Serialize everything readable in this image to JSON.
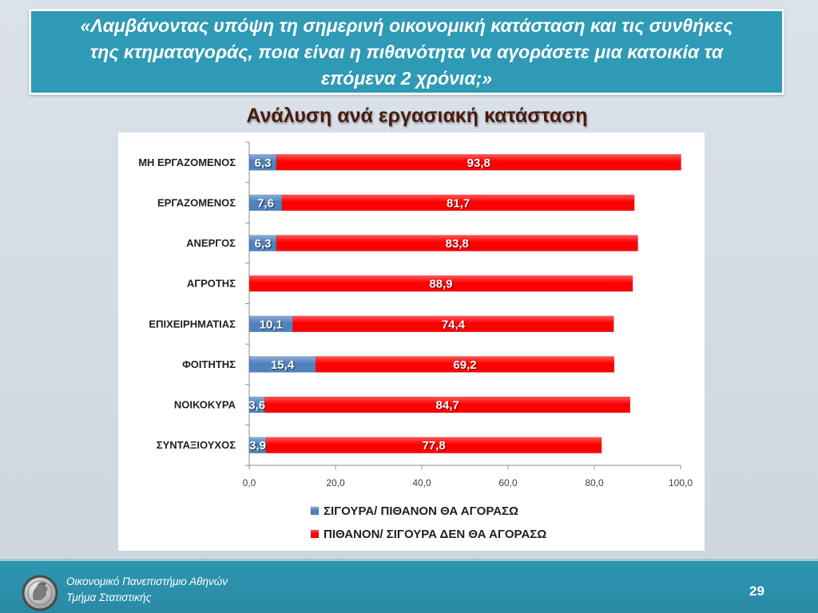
{
  "slide": {
    "question_lines": [
      "«Λαμβάνοντας υπόψη τη σημερινή οικονομική κατάσταση και τις συνθήκες",
      "της κτηματαγοράς, ποια είναι η πιθανότητα να αγοράσετε μια κατοικία τα",
      "επόμενα 2 χρόνια;»"
    ],
    "page_number": "29"
  },
  "footer": {
    "institution": "Οικονομικό Πανεπιστήμιο Αθηνών",
    "department": "Τμήμα Στατιστικής",
    "logo_icon": "university-seal-icon"
  },
  "theme": {
    "banner": "#2e9ab5",
    "subtitle_text": "#4a1a0e"
  },
  "chart_data": {
    "type": "bar",
    "orientation": "horizontal",
    "stacked": true,
    "title": "Ανάλυση ανά εργασιακή κατάσταση",
    "categories": [
      "ΜΗ ΕΡΓΑΖΟΜΕΝΟΣ",
      "ΕΡΓΑΖΟΜΕΝΟΣ",
      "ΑΝΕΡΓΟΣ",
      "ΑΓΡΟΤΗΣ",
      "ΕΠΙΧΕΙΡΗΜΑΤΙΑΣ",
      "ΦΟΙΤΗΤΗΣ",
      "ΝΟΙΚΟΚΥΡΑ",
      "ΣΥΝΤΑΞΙΟΥΧΟΣ"
    ],
    "series": [
      {
        "name": "ΣΙΓΟΥΡΑ/ ΠΙΘΑΝΟΝ ΘΑ ΑΓΟΡΑΣΩ",
        "color": "#4f81bd",
        "values": [
          6.3,
          7.6,
          6.3,
          null,
          10.1,
          15.4,
          3.6,
          3.9
        ]
      },
      {
        "name": "ΠΙΘΑΝΟΝ/ ΣΙΓΟΥΡΑ ΔΕΝ ΘΑ ΑΓΟΡΑΣΩ",
        "color": "#ff0000",
        "values": [
          93.8,
          81.7,
          83.8,
          88.9,
          74.4,
          69.2,
          84.7,
          77.8
        ]
      }
    ],
    "xlim": [
      0,
      100
    ],
    "xticks": [
      0,
      20,
      40,
      60,
      80,
      100
    ],
    "legend": "bottom",
    "grid": false
  }
}
